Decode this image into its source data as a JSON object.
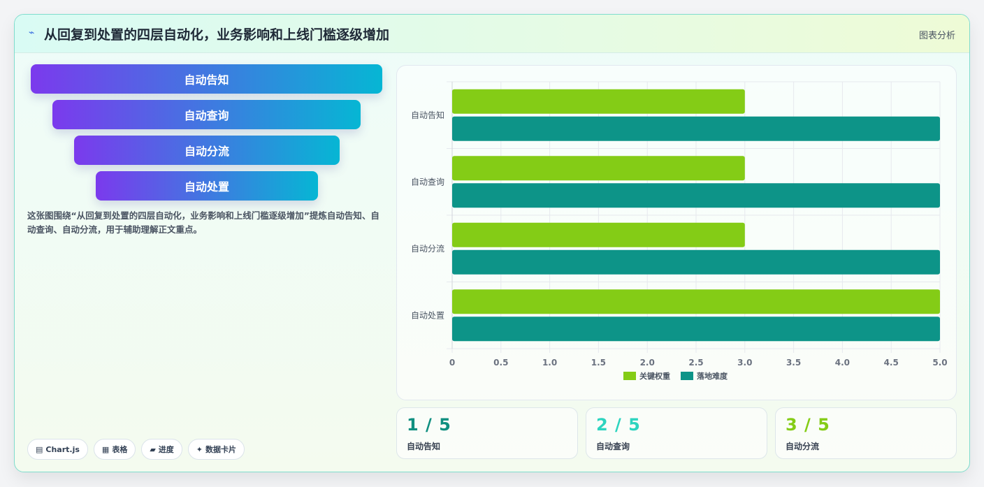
{
  "header": {
    "icon": "pulse-icon",
    "title": "从回复到处置的四层自动化，业务影响和上线门槛逐级增加",
    "tag": "图表分析"
  },
  "funnel": {
    "items": [
      "自动告知",
      "自动查询",
      "自动分流",
      "自动处置"
    ]
  },
  "description": "这张图围绕“从回复到处置的四层自动化，业务影响和上线门槛逐级增加”提炼自动告知、自动查询、自动分流，用于辅助理解正文重点。",
  "chips": [
    {
      "icon": "▤",
      "label": "Chart.js"
    },
    {
      "icon": "▦",
      "label": "表格"
    },
    {
      "icon": "▰",
      "label": "进度"
    },
    {
      "icon": "✦",
      "label": "数据卡片"
    }
  ],
  "chart_data": {
    "type": "bar",
    "orientation": "horizontal",
    "categories": [
      "自动告知",
      "自动查询",
      "自动分流",
      "自动处置"
    ],
    "series": [
      {
        "name": "关键权重",
        "values": [
          3,
          3,
          3,
          5
        ],
        "color": "#84cc16"
      },
      {
        "name": "落地难度",
        "values": [
          5,
          5,
          5,
          5
        ],
        "color": "#0d9488"
      }
    ],
    "xlim": [
      0,
      5
    ],
    "xticks": [
      "0",
      "0.5",
      "1.0",
      "1.5",
      "2.0",
      "2.5",
      "3.0",
      "3.5",
      "4.0",
      "4.5",
      "5.0"
    ],
    "grid": true,
    "legend": "bottom"
  },
  "stats": [
    {
      "value": "1 / 5",
      "label": "自动告知",
      "color": "#0f8f80"
    },
    {
      "value": "2 / 5",
      "label": "自动查询",
      "color": "#2dd4bf"
    },
    {
      "value": "3 / 5",
      "label": "自动分流",
      "color": "#84cc16"
    }
  ]
}
